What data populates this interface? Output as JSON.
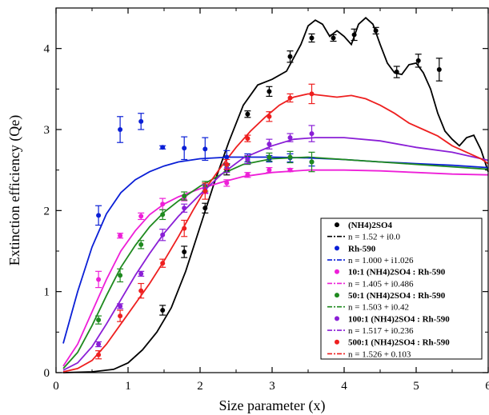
{
  "chart_data": {
    "type": "scatter",
    "xlabel": "Size parameter (x)",
    "ylabel": "Extinction efficiency (Qe)",
    "xlim": [
      0,
      6
    ],
    "ylim": [
      0,
      4.5
    ],
    "xticks": [
      "0",
      "1",
      "2",
      "3",
      "4",
      "5",
      "6"
    ],
    "yticks": [
      "0",
      "1",
      "2",
      "3",
      "4"
    ],
    "grid": false,
    "legend_position": "bottom-right",
    "series": [
      {
        "name": "(NH4)2SO4",
        "color": "#000000",
        "points": [
          {
            "x": 1.48,
            "y": 0.77,
            "err": 0.06
          },
          {
            "x": 1.78,
            "y": 1.49,
            "err": 0.07
          },
          {
            "x": 2.07,
            "y": 2.03,
            "err": 0.06
          },
          {
            "x": 2.37,
            "y": 2.5,
            "err": 0.06
          },
          {
            "x": 2.66,
            "y": 3.19,
            "err": 0.04
          },
          {
            "x": 2.96,
            "y": 3.47,
            "err": 0.06
          },
          {
            "x": 3.25,
            "y": 3.9,
            "err": 0.07
          },
          {
            "x": 3.55,
            "y": 4.13,
            "err": 0.05
          },
          {
            "x": 3.85,
            "y": 4.13,
            "err": 0.04
          },
          {
            "x": 4.14,
            "y": 4.17,
            "err": 0.07
          },
          {
            "x": 4.44,
            "y": 4.22,
            "err": 0.04
          },
          {
            "x": 4.73,
            "y": 3.71,
            "err": 0.07
          },
          {
            "x": 5.03,
            "y": 3.85,
            "err": 0.08
          },
          {
            "x": 5.32,
            "y": 3.74,
            "err": 0.14
          }
        ]
      },
      {
        "name": "Rh-590",
        "color": "#0a1fd6",
        "points": [
          {
            "x": 0.59,
            "y": 1.94,
            "err": 0.12
          },
          {
            "x": 0.89,
            "y": 3.0,
            "err": 0.16
          },
          {
            "x": 1.18,
            "y": 3.1,
            "err": 0.1
          },
          {
            "x": 1.48,
            "y": 2.78,
            "err": 0.02
          },
          {
            "x": 1.78,
            "y": 2.77,
            "err": 0.14
          },
          {
            "x": 2.07,
            "y": 2.76,
            "err": 0.14
          },
          {
            "x": 2.37,
            "y": 2.66,
            "err": 0.08
          },
          {
            "x": 2.66,
            "y": 2.65,
            "err": 0.05
          },
          {
            "x": 2.96,
            "y": 2.64,
            "err": 0.04
          },
          {
            "x": 3.25,
            "y": 2.65,
            "err": 0.05
          },
          {
            "x": 3.55,
            "y": 2.6,
            "err": 0.05
          }
        ]
      },
      {
        "name": "10:1 (NH4)2SO4 : Rh-590",
        "color": "#ee1fd8",
        "points": [
          {
            "x": 0.59,
            "y": 1.15,
            "err": 0.1
          },
          {
            "x": 0.89,
            "y": 1.69,
            "err": 0.03
          },
          {
            "x": 1.18,
            "y": 1.93,
            "err": 0.04
          },
          {
            "x": 1.48,
            "y": 2.08,
            "err": 0.07
          },
          {
            "x": 1.78,
            "y": 2.15,
            "err": 0.03
          },
          {
            "x": 2.07,
            "y": 2.26,
            "err": 0.05
          },
          {
            "x": 2.37,
            "y": 2.34,
            "err": 0.04
          },
          {
            "x": 2.66,
            "y": 2.44,
            "err": 0.03
          },
          {
            "x": 2.96,
            "y": 2.5,
            "err": 0.03
          },
          {
            "x": 3.25,
            "y": 2.5,
            "err": 0.02
          }
        ]
      },
      {
        "name": "50:1 (NH4)2SO4 : Rh-590",
        "color": "#1f8a1f",
        "points": [
          {
            "x": 0.59,
            "y": 0.65,
            "err": 0.05
          },
          {
            "x": 0.89,
            "y": 1.2,
            "err": 0.08
          },
          {
            "x": 1.18,
            "y": 1.58,
            "err": 0.05
          },
          {
            "x": 1.48,
            "y": 1.95,
            "err": 0.06
          },
          {
            "x": 1.78,
            "y": 2.18,
            "err": 0.05
          },
          {
            "x": 2.07,
            "y": 2.3,
            "err": 0.06
          },
          {
            "x": 2.37,
            "y": 2.53,
            "err": 0.05
          },
          {
            "x": 2.66,
            "y": 2.62,
            "err": 0.05
          },
          {
            "x": 2.96,
            "y": 2.66,
            "err": 0.05
          },
          {
            "x": 3.25,
            "y": 2.66,
            "err": 0.07
          },
          {
            "x": 3.55,
            "y": 2.6,
            "err": 0.12
          }
        ]
      },
      {
        "name": "100:1 (NH4)2SO4 : Rh-590",
        "color": "#8a1fd6",
        "points": [
          {
            "x": 0.59,
            "y": 0.35,
            "err": 0.03
          },
          {
            "x": 0.89,
            "y": 0.82,
            "err": 0.03
          },
          {
            "x": 1.18,
            "y": 1.22,
            "err": 0.03
          },
          {
            "x": 1.48,
            "y": 1.7,
            "err": 0.07
          },
          {
            "x": 1.78,
            "y": 2.03,
            "err": 0.05
          },
          {
            "x": 2.07,
            "y": 2.27,
            "err": 0.05
          },
          {
            "x": 2.37,
            "y": 2.52,
            "err": 0.05
          },
          {
            "x": 2.66,
            "y": 2.63,
            "err": 0.05
          },
          {
            "x": 2.96,
            "y": 2.82,
            "err": 0.06
          },
          {
            "x": 3.25,
            "y": 2.9,
            "err": 0.05
          },
          {
            "x": 3.55,
            "y": 2.95,
            "err": 0.1
          }
        ]
      },
      {
        "name": "500:1 (NH4)2SO4 : Rh-590",
        "color": "#ee1f1f",
        "points": [
          {
            "x": 0.59,
            "y": 0.22,
            "err": 0.05
          },
          {
            "x": 0.89,
            "y": 0.7,
            "err": 0.07
          },
          {
            "x": 1.18,
            "y": 1.01,
            "err": 0.09
          },
          {
            "x": 1.48,
            "y": 1.35,
            "err": 0.05
          },
          {
            "x": 1.78,
            "y": 1.78,
            "err": 0.1
          },
          {
            "x": 2.07,
            "y": 2.24,
            "err": 0.1
          },
          {
            "x": 2.37,
            "y": 2.57,
            "err": 0.06
          },
          {
            "x": 2.66,
            "y": 2.89,
            "err": 0.04
          },
          {
            "x": 2.96,
            "y": 3.16,
            "err": 0.06
          },
          {
            "x": 3.25,
            "y": 3.39,
            "err": 0.05
          },
          {
            "x": 3.55,
            "y": 3.44,
            "err": 0.12
          }
        ]
      }
    ],
    "fits": [
      {
        "name": "n = 1.52 + i0.0",
        "color": "#000000",
        "points": [
          [
            0.1,
            0.0
          ],
          [
            0.5,
            0.01
          ],
          [
            0.8,
            0.04
          ],
          [
            1.0,
            0.12
          ],
          [
            1.2,
            0.28
          ],
          [
            1.4,
            0.5
          ],
          [
            1.6,
            0.8
          ],
          [
            1.8,
            1.25
          ],
          [
            2.0,
            1.8
          ],
          [
            2.2,
            2.35
          ],
          [
            2.4,
            2.85
          ],
          [
            2.6,
            3.3
          ],
          [
            2.8,
            3.55
          ],
          [
            3.0,
            3.62
          ],
          [
            3.2,
            3.72
          ],
          [
            3.4,
            4.05
          ],
          [
            3.5,
            4.28
          ],
          [
            3.6,
            4.35
          ],
          [
            3.7,
            4.3
          ],
          [
            3.8,
            4.15
          ],
          [
            3.9,
            4.22
          ],
          [
            4.0,
            4.15
          ],
          [
            4.1,
            4.05
          ],
          [
            4.2,
            4.3
          ],
          [
            4.3,
            4.38
          ],
          [
            4.4,
            4.3
          ],
          [
            4.5,
            4.05
          ],
          [
            4.6,
            3.82
          ],
          [
            4.7,
            3.7
          ],
          [
            4.8,
            3.68
          ],
          [
            4.9,
            3.8
          ],
          [
            5.0,
            3.82
          ],
          [
            5.1,
            3.7
          ],
          [
            5.2,
            3.5
          ],
          [
            5.3,
            3.2
          ],
          [
            5.4,
            2.98
          ],
          [
            5.5,
            2.88
          ],
          [
            5.6,
            2.8
          ],
          [
            5.7,
            2.9
          ],
          [
            5.8,
            2.93
          ],
          [
            5.9,
            2.75
          ],
          [
            6.0,
            2.48
          ]
        ]
      },
      {
        "name": "n = 1.000 + i1.026",
        "color": "#0a1fd6",
        "points": [
          [
            0.1,
            0.36
          ],
          [
            0.3,
            1.0
          ],
          [
            0.5,
            1.55
          ],
          [
            0.7,
            1.96
          ],
          [
            0.9,
            2.22
          ],
          [
            1.1,
            2.38
          ],
          [
            1.3,
            2.48
          ],
          [
            1.5,
            2.55
          ],
          [
            1.7,
            2.6
          ],
          [
            2.0,
            2.64
          ],
          [
            2.4,
            2.66
          ],
          [
            3.0,
            2.66
          ],
          [
            3.5,
            2.65
          ],
          [
            4.0,
            2.63
          ],
          [
            4.5,
            2.6
          ],
          [
            5.0,
            2.58
          ],
          [
            5.5,
            2.56
          ],
          [
            6.0,
            2.53
          ]
        ]
      },
      {
        "name": "n = 1.405 + i0.486",
        "color": "#ee1fd8",
        "points": [
          [
            0.1,
            0.08
          ],
          [
            0.3,
            0.35
          ],
          [
            0.5,
            0.75
          ],
          [
            0.7,
            1.15
          ],
          [
            0.9,
            1.5
          ],
          [
            1.1,
            1.75
          ],
          [
            1.3,
            1.95
          ],
          [
            1.5,
            2.08
          ],
          [
            1.7,
            2.17
          ],
          [
            2.0,
            2.27
          ],
          [
            2.3,
            2.35
          ],
          [
            2.6,
            2.42
          ],
          [
            3.0,
            2.47
          ],
          [
            3.5,
            2.5
          ],
          [
            4.0,
            2.5
          ],
          [
            4.5,
            2.49
          ],
          [
            5.0,
            2.47
          ],
          [
            5.5,
            2.45
          ],
          [
            6.0,
            2.44
          ]
        ]
      },
      {
        "name": "n = 1.503 + i0.42",
        "color": "#1f8a1f",
        "points": [
          [
            0.1,
            0.05
          ],
          [
            0.3,
            0.25
          ],
          [
            0.5,
            0.58
          ],
          [
            0.7,
            0.95
          ],
          [
            0.9,
            1.3
          ],
          [
            1.1,
            1.57
          ],
          [
            1.3,
            1.8
          ],
          [
            1.5,
            1.98
          ],
          [
            1.7,
            2.12
          ],
          [
            2.0,
            2.3
          ],
          [
            2.3,
            2.45
          ],
          [
            2.6,
            2.57
          ],
          [
            3.0,
            2.64
          ],
          [
            3.5,
            2.66
          ],
          [
            4.0,
            2.63
          ],
          [
            4.5,
            2.6
          ],
          [
            5.0,
            2.57
          ],
          [
            5.5,
            2.54
          ],
          [
            6.0,
            2.51
          ]
        ]
      },
      {
        "name": "n = 1.517 + i0.236",
        "color": "#8a1fd6",
        "points": [
          [
            0.1,
            0.03
          ],
          [
            0.3,
            0.12
          ],
          [
            0.5,
            0.32
          ],
          [
            0.7,
            0.6
          ],
          [
            0.9,
            0.9
          ],
          [
            1.1,
            1.2
          ],
          [
            1.3,
            1.47
          ],
          [
            1.5,
            1.72
          ],
          [
            1.7,
            1.93
          ],
          [
            2.0,
            2.2
          ],
          [
            2.3,
            2.45
          ],
          [
            2.6,
            2.65
          ],
          [
            3.0,
            2.8
          ],
          [
            3.3,
            2.88
          ],
          [
            3.6,
            2.9
          ],
          [
            4.0,
            2.9
          ],
          [
            4.5,
            2.86
          ],
          [
            5.0,
            2.78
          ],
          [
            5.5,
            2.72
          ],
          [
            6.0,
            2.62
          ]
        ]
      },
      {
        "name": "n = 1.526 + 0.103",
        "color": "#ee1f1f",
        "points": [
          [
            0.1,
            0.01
          ],
          [
            0.3,
            0.05
          ],
          [
            0.5,
            0.15
          ],
          [
            0.7,
            0.35
          ],
          [
            0.9,
            0.6
          ],
          [
            1.1,
            0.85
          ],
          [
            1.3,
            1.1
          ],
          [
            1.5,
            1.38
          ],
          [
            1.7,
            1.68
          ],
          [
            1.9,
            2.0
          ],
          [
            2.1,
            2.3
          ],
          [
            2.3,
            2.55
          ],
          [
            2.5,
            2.78
          ],
          [
            2.7,
            2.98
          ],
          [
            2.9,
            3.15
          ],
          [
            3.1,
            3.3
          ],
          [
            3.3,
            3.4
          ],
          [
            3.5,
            3.44
          ],
          [
            3.7,
            3.42
          ],
          [
            3.9,
            3.4
          ],
          [
            4.1,
            3.42
          ],
          [
            4.3,
            3.38
          ],
          [
            4.5,
            3.3
          ],
          [
            4.7,
            3.2
          ],
          [
            4.9,
            3.08
          ],
          [
            5.1,
            3.0
          ],
          [
            5.3,
            2.92
          ],
          [
            5.5,
            2.8
          ],
          [
            5.7,
            2.72
          ],
          [
            5.9,
            2.64
          ],
          [
            6.0,
            2.58
          ]
        ]
      }
    ]
  }
}
